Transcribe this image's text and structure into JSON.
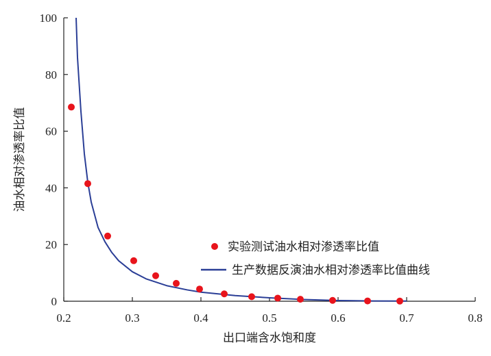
{
  "chart_data": {
    "type": "scatter",
    "xlabel": "出口端含水饱和度",
    "ylabel": "油水相对渗透率比值",
    "xlim": [
      0.2,
      0.8
    ],
    "ylim": [
      0,
      100
    ],
    "x_ticks": [
      "0.2",
      "0.3",
      "0.4",
      "0.5",
      "0.6",
      "0.7",
      "0.8"
    ],
    "y_ticks": [
      "0",
      "20",
      "40",
      "60",
      "80",
      "100"
    ],
    "legend_position": "right",
    "series": [
      {
        "name": "实验测试油水相对渗透率比值",
        "kind": "scatter",
        "color": "#e8141c",
        "x": [
          0.211,
          0.235,
          0.264,
          0.302,
          0.334,
          0.364,
          0.398,
          0.434,
          0.474,
          0.512,
          0.545,
          0.592,
          0.643,
          0.69
        ],
        "y": [
          68.5,
          41.5,
          23.0,
          14.3,
          9.0,
          6.3,
          4.3,
          2.6,
          1.6,
          1.1,
          0.7,
          0.3,
          0.1,
          0.05
        ]
      },
      {
        "name": "生产数据反演油水相对渗透率比值曲线",
        "kind": "line",
        "color": "#2a3e96",
        "x": [
          0.218,
          0.22,
          0.225,
          0.23,
          0.235,
          0.24,
          0.25,
          0.26,
          0.27,
          0.28,
          0.3,
          0.32,
          0.35,
          0.38,
          0.4,
          0.45,
          0.5,
          0.55,
          0.6,
          0.65,
          0.7
        ],
        "y": [
          100,
          86.0,
          67.0,
          52.0,
          42.0,
          35.0,
          26.0,
          21.0,
          17.2,
          14.3,
          10.4,
          7.9,
          5.5,
          4.0,
          3.2,
          2.0,
          1.2,
          0.6,
          0.25,
          0.1,
          0.05
        ]
      }
    ]
  }
}
